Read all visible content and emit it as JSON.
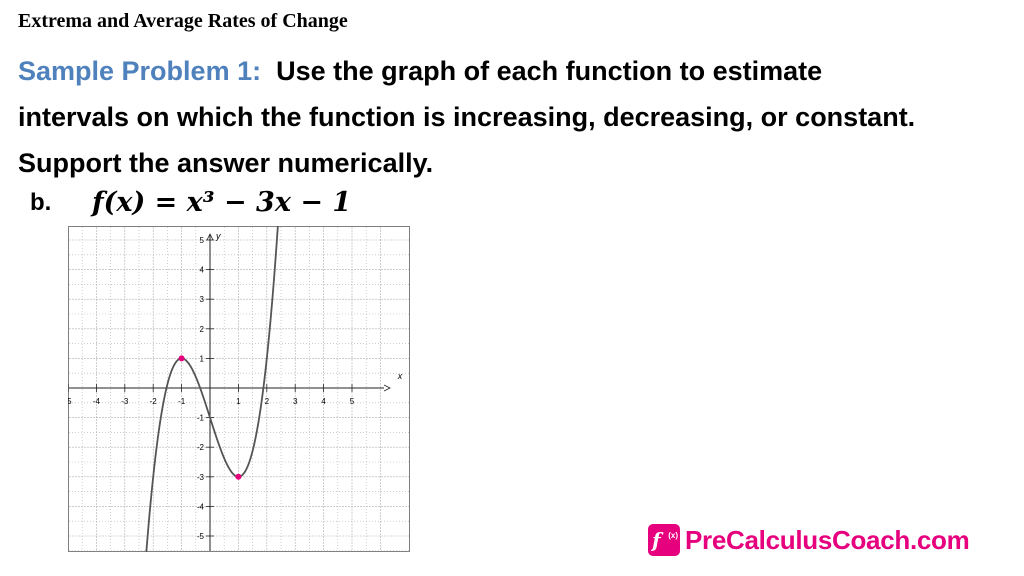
{
  "header": {
    "title": "Extrema and Average Rates of Change"
  },
  "problem": {
    "label": "Sample Problem 1",
    "colon": ":",
    "line1": "Use the graph of each function to estimate",
    "line2": "intervals on which the function is increasing, decreasing, or constant.",
    "line3": "Support the answer numerically.",
    "part": "b.",
    "equation": "f(x) = x³ − 3x − 1"
  },
  "chart_data": {
    "type": "line",
    "function": "x^3 - 3x - 1",
    "xlabel": "x",
    "ylabel": "y",
    "xlim": [
      -6,
      6
    ],
    "ylim": [
      -5.5,
      5.5
    ],
    "x_ticks": [
      "-5",
      "-4",
      "-3",
      "-2",
      "-1",
      "1",
      "2",
      "3",
      "4",
      "5"
    ],
    "y_ticks": [
      "5",
      "4",
      "3",
      "2",
      "1",
      "-1",
      "-2",
      "-3",
      "-4",
      "-5"
    ],
    "grid": true,
    "points": [
      {
        "x": -1,
        "y": 1
      },
      {
        "x": 1,
        "y": -3
      }
    ],
    "colors": {
      "curve": "#555555",
      "points": "#e6007e",
      "grid": "#b0b0b0"
    }
  },
  "logo": {
    "mark": "f",
    "mark_sub": "(x)",
    "text": "PreCalculusCoach.com"
  }
}
